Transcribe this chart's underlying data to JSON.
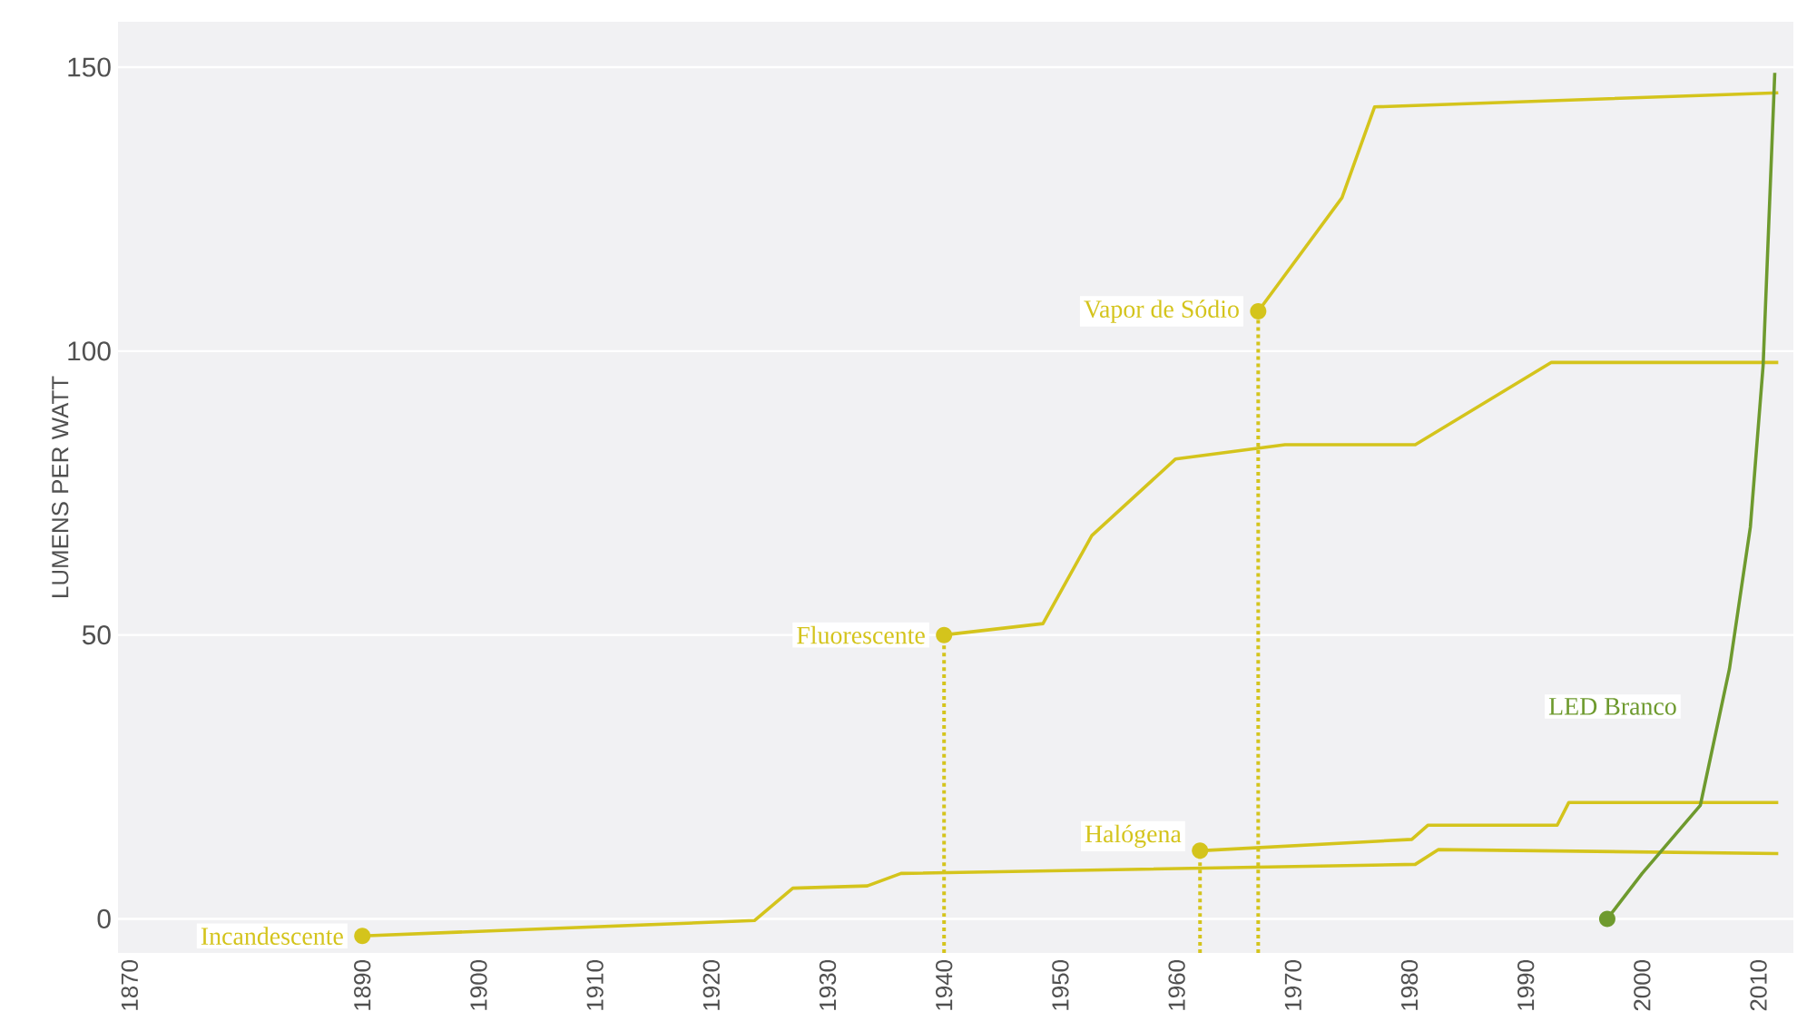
{
  "chart_data": {
    "type": "line",
    "ylabel": "LUMENS PER WATT",
    "xlim": [
      1869,
      2013
    ],
    "ylim": [
      -6,
      158
    ],
    "xticks": [
      1870,
      1890,
      1900,
      1910,
      1920,
      1930,
      1940,
      1950,
      1960,
      1970,
      1980,
      1990,
      2000,
      2010
    ],
    "yticks": [
      0,
      50,
      100,
      150
    ],
    "grid": "y",
    "line_style": "solid",
    "series": [
      {
        "name": "Incandescente",
        "color": "#d4c41c",
        "x": [
          1890,
          1923.7,
          1927,
          1933.4,
          1936.3,
          1980.5,
          1982.5,
          2011.7
        ],
        "values": [
          -3,
          -0.3,
          5.4,
          5.8,
          8,
          9.6,
          12.2,
          11.5
        ]
      },
      {
        "name": "Fluorescente",
        "color": "#d4c41c",
        "x": [
          1940,
          1948.5,
          1952.7,
          1959.9,
          1969.3,
          1980.5,
          1992.2,
          2011.7
        ],
        "values": [
          50,
          52,
          67.5,
          81,
          83.5,
          83.5,
          98,
          98
        ]
      },
      {
        "name": "Vapor de Sódio",
        "color": "#d4c41c",
        "x": [
          1967,
          1974.2,
          1977,
          2011.7
        ],
        "values": [
          107,
          127,
          143,
          145.5
        ]
      },
      {
        "name": "Halógena",
        "color": "#d4c41c",
        "x": [
          1962,
          1980.2,
          1981.6,
          1992.7,
          1993.7,
          2011.7
        ],
        "values": [
          12,
          14,
          16.5,
          16.5,
          20.5,
          20.5
        ]
      },
      {
        "name": "LED Branco",
        "color": "#6e9a2e",
        "x": [
          1997,
          2000,
          2005,
          2007.5,
          2009.3,
          2010.4,
          2011.4
        ],
        "values": [
          0,
          8,
          20,
          44,
          69,
          97.5,
          149
        ]
      }
    ],
    "ref_lines": [
      {
        "axis": "x",
        "value": 1940,
        "color": "#d4c41c",
        "line_style": "dotted"
      },
      {
        "axis": "x",
        "value": 1962,
        "color": "#d4c41c",
        "line_style": "dotted"
      },
      {
        "axis": "x",
        "value": 1967,
        "color": "#d4c41c",
        "line_style": "dotted"
      }
    ]
  }
}
